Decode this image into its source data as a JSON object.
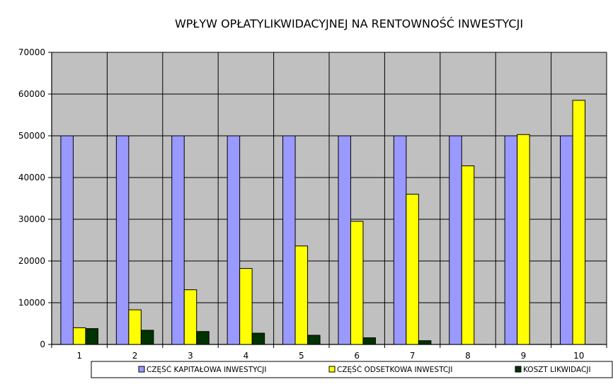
{
  "chart_data": {
    "type": "bar",
    "title": "WPŁYW OPŁATYLIKWIDACYJNEJ NA RENTOWNOŚĆ INWESTYCJI",
    "xlabel": "",
    "ylabel": "",
    "categories": [
      "1",
      "2",
      "3",
      "4",
      "5",
      "6",
      "7",
      "8",
      "9",
      "10"
    ],
    "ylim": [
      0,
      70000
    ],
    "yticks": [
      "0",
      "10000",
      "20000",
      "30000",
      "40000",
      "50000",
      "60000",
      "70000"
    ],
    "grid": true,
    "legend_position": "bottom",
    "plot_background": "#c0c0c0",
    "series": [
      {
        "name": "CZĘŚĆ KAPITAŁOWA INWESTYCJI",
        "color": "#9999ff",
        "values": [
          50000,
          50000,
          50000,
          50000,
          50000,
          50000,
          50000,
          50000,
          50000,
          50000
        ]
      },
      {
        "name": "CZĘŚĆ ODSETKOWA INWESTCJI",
        "color": "#ffff00",
        "values": [
          4000,
          8300,
          13100,
          18200,
          23600,
          29500,
          36000,
          42800,
          50300,
          58500
        ]
      },
      {
        "name": "KOSZT LIKWIDACJI",
        "color": "#003300",
        "values": [
          3800,
          3400,
          3100,
          2700,
          2200,
          1600,
          900,
          0,
          0,
          0
        ]
      }
    ]
  }
}
